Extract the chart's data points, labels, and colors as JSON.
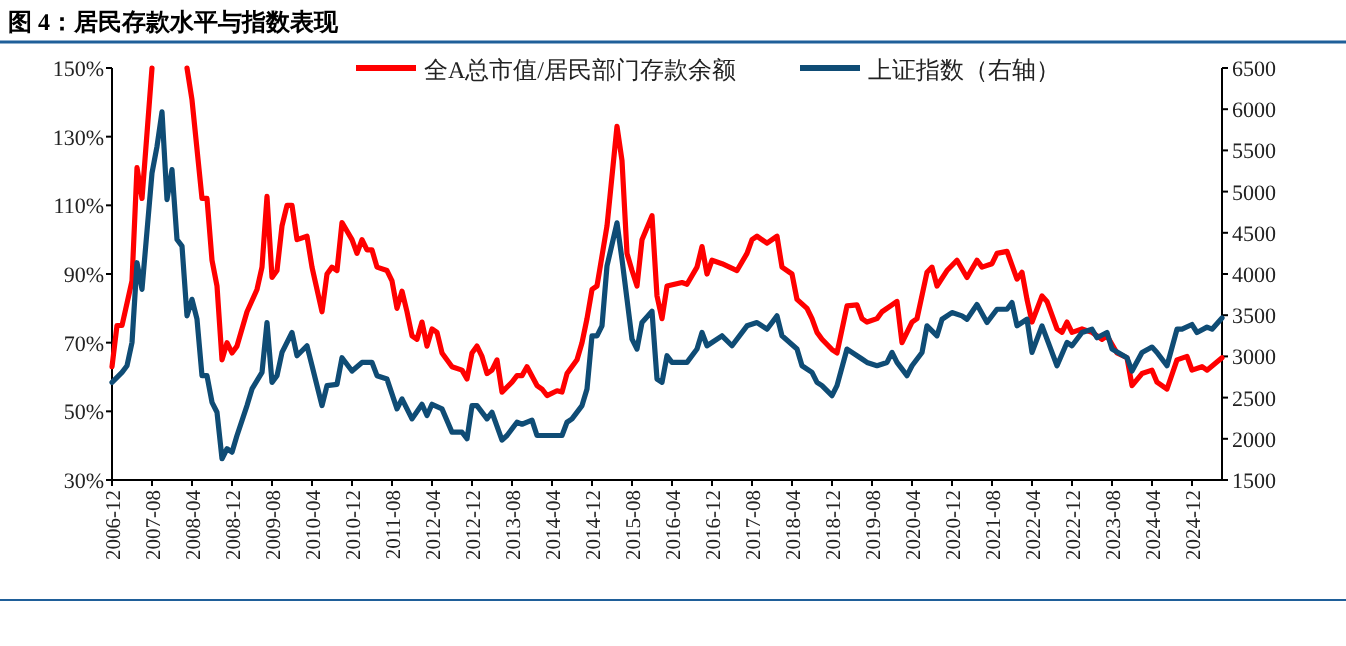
{
  "chart_data": {
    "type": "line",
    "title": "图 4：居民存款水平与指数表现",
    "legend": "top",
    "grid": false,
    "marker": "none",
    "line_style": "solid",
    "xlim": [
      "2006-12",
      "2025-06"
    ],
    "xticks": [
      "2006-12",
      "2007-08",
      "2008-04",
      "2008-12",
      "2009-08",
      "2010-04",
      "2010-12",
      "2011-08",
      "2012-04",
      "2012-12",
      "2013-08",
      "2014-04",
      "2014-12",
      "2015-08",
      "2016-04",
      "2016-12",
      "2017-08",
      "2018-04",
      "2018-12",
      "2019-08",
      "2020-04",
      "2020-12",
      "2021-08",
      "2022-04",
      "2022-12",
      "2023-08",
      "2024-04",
      "2024-12"
    ],
    "ylim": [
      30,
      150
    ],
    "yticks": [
      {
        "value": 30,
        "label": "30%"
      },
      {
        "value": 50,
        "label": "50%"
      },
      {
        "value": 70,
        "label": "70%"
      },
      {
        "value": 90,
        "label": "90%"
      },
      {
        "value": 110,
        "label": "110%"
      },
      {
        "value": 130,
        "label": "130%"
      },
      {
        "value": 150,
        "label": "150%"
      }
    ],
    "y2lim": [
      1500,
      6500
    ],
    "y2ticks": [
      1500,
      2000,
      2500,
      3000,
      3500,
      4000,
      4500,
      5000,
      5500,
      6000,
      6500
    ],
    "series": [
      {
        "name": "全A总市值/居民部门存款余额",
        "color": "#ff0000",
        "axis": "y",
        "x": [
          "2006-12",
          "2007-01",
          "2007-02",
          "2007-04",
          "2007-05",
          "2007-06",
          "2007-08",
          "2007-11",
          "2008-03",
          "2008-04",
          "2008-06",
          "2008-07",
          "2008-08",
          "2008-09",
          "2008-10",
          "2008-11",
          "2008-12",
          "2009-01",
          "2009-03",
          "2009-05",
          "2009-06",
          "2009-07",
          "2009-08",
          "2009-09",
          "2009-10",
          "2009-11",
          "2009-12",
          "2010-01",
          "2010-03",
          "2010-04",
          "2010-06",
          "2010-07",
          "2010-08",
          "2010-09",
          "2010-10",
          "2010-12",
          "2011-01",
          "2011-02",
          "2011-03",
          "2011-04",
          "2011-05",
          "2011-07",
          "2011-08",
          "2011-09",
          "2011-10",
          "2011-11",
          "2011-12",
          "2012-01",
          "2012-02",
          "2012-03",
          "2012-04",
          "2012-05",
          "2012-06",
          "2012-08",
          "2012-10",
          "2012-11",
          "2012-12",
          "2013-01",
          "2013-02",
          "2013-03",
          "2013-04",
          "2013-05",
          "2013-06",
          "2013-08",
          "2013-09",
          "2013-10",
          "2013-11",
          "2014-01",
          "2014-02",
          "2014-03",
          "2014-05",
          "2014-06",
          "2014-07",
          "2014-09",
          "2014-10",
          "2014-11",
          "2014-12",
          "2015-01",
          "2015-03",
          "2015-05",
          "2015-06",
          "2015-07",
          "2015-08",
          "2015-09",
          "2015-10",
          "2015-12",
          "2016-01",
          "2016-02",
          "2016-03",
          "2016-06",
          "2016-07",
          "2016-09",
          "2016-10",
          "2016-11",
          "2016-12",
          "2017-02",
          "2017-05",
          "2017-07",
          "2017-08",
          "2017-09",
          "2017-11",
          "2018-01",
          "2018-02",
          "2018-04",
          "2018-05",
          "2018-07",
          "2018-08",
          "2018-09",
          "2018-10",
          "2018-12",
          "2019-01",
          "2019-03",
          "2019-05",
          "2019-06",
          "2019-07",
          "2019-09",
          "2019-10",
          "2019-12",
          "2020-01",
          "2020-02",
          "2020-04",
          "2020-05",
          "2020-07",
          "2020-08",
          "2020-09",
          "2020-11",
          "2021-01",
          "2021-03",
          "2021-05",
          "2021-06",
          "2021-08",
          "2021-09",
          "2021-11",
          "2022-01",
          "2022-02",
          "2022-03",
          "2022-04",
          "2022-06",
          "2022-07",
          "2022-09",
          "2022-10",
          "2022-11",
          "2022-12",
          "2023-02",
          "2023-04",
          "2023-06",
          "2023-07",
          "2023-09",
          "2023-11",
          "2023-12",
          "2024-02",
          "2024-04",
          "2024-05",
          "2024-07",
          "2024-09",
          "2024-11",
          "2024-12",
          "2025-02",
          "2025-03",
          "2025-06"
        ],
        "values": [
          63,
          75,
          75,
          88,
          121,
          112,
          150,
          null,
          150,
          140.7,
          112,
          112,
          94,
          86.5,
          65,
          70,
          67,
          69,
          79,
          85.5,
          92,
          112.6,
          89,
          91,
          104,
          110,
          110,
          100,
          101,
          92,
          79,
          90,
          92,
          91,
          105,
          100,
          96,
          100,
          97,
          97,
          92,
          91,
          88,
          80,
          85,
          79,
          72,
          71,
          76,
          69,
          74,
          73,
          67,
          63,
          62,
          59.4,
          67,
          69,
          66,
          61,
          62,
          65,
          55.6,
          58.5,
          60.4,
          60.4,
          63,
          57.5,
          56.5,
          54.6,
          56,
          55.6,
          61,
          65,
          70,
          77,
          85.5,
          86.5,
          104,
          133,
          123,
          96,
          91,
          86.5,
          100,
          107,
          83.6,
          77,
          86.5,
          87.5,
          87,
          92,
          98,
          90,
          94,
          93,
          91,
          96,
          100,
          101,
          99,
          101,
          92,
          90,
          82.6,
          80,
          77,
          73,
          71,
          68,
          67,
          80.7,
          81,
          77,
          76,
          77,
          79,
          81,
          82,
          70,
          76,
          77,
          90.5,
          92,
          86.5,
          91,
          94,
          89,
          94,
          92,
          93,
          96,
          96.6,
          88.5,
          90.5,
          82.6,
          76,
          83.6,
          82,
          74,
          73,
          76,
          73,
          74,
          73,
          71,
          72,
          67,
          65.6,
          57.5,
          61,
          62,
          58.5,
          56.5,
          65,
          66,
          62,
          63,
          62,
          65.6
        ]
      },
      {
        "name": "上证指数（右轴）",
        "color": "#0f4c75",
        "axis": "y2",
        "x": [
          "2006-12",
          "2007-02",
          "2007-03",
          "2007-04",
          "2007-05",
          "2007-06",
          "2007-08",
          "2007-09",
          "2007-10",
          "2007-11",
          "2007-12",
          "2008-01",
          "2008-02",
          "2008-03",
          "2008-04",
          "2008-05",
          "2008-06",
          "2008-07",
          "2008-08",
          "2008-09",
          "2008-10",
          "2008-11",
          "2008-12",
          "2009-01",
          "2009-03",
          "2009-04",
          "2009-06",
          "2009-07",
          "2009-08",
          "2009-09",
          "2009-10",
          "2009-12",
          "2010-01",
          "2010-03",
          "2010-04",
          "2010-06",
          "2010-07",
          "2010-09",
          "2010-10",
          "2010-12",
          "2011-02",
          "2011-04",
          "2011-05",
          "2011-07",
          "2011-09",
          "2011-10",
          "2011-12",
          "2012-02",
          "2012-03",
          "2012-04",
          "2012-06",
          "2012-08",
          "2012-10",
          "2012-11",
          "2012-12",
          "2013-01",
          "2013-03",
          "2013-04",
          "2013-06",
          "2013-07",
          "2013-09",
          "2013-10",
          "2013-12",
          "2014-01",
          "2014-03",
          "2014-06",
          "2014-07",
          "2014-08",
          "2014-10",
          "2014-11",
          "2014-12",
          "2015-01",
          "2015-02",
          "2015-03",
          "2015-05",
          "2015-06",
          "2015-07",
          "2015-08",
          "2015-09",
          "2015-10",
          "2015-12",
          "2016-01",
          "2016-02",
          "2016-03",
          "2016-04",
          "2016-06",
          "2016-07",
          "2016-09",
          "2016-10",
          "2016-11",
          "2017-02",
          "2017-04",
          "2017-07",
          "2017-09",
          "2017-11",
          "2018-01",
          "2018-02",
          "2018-05",
          "2018-06",
          "2018-08",
          "2018-09",
          "2018-10",
          "2018-12",
          "2019-01",
          "2019-03",
          "2019-04",
          "2019-06",
          "2019-07",
          "2019-09",
          "2019-11",
          "2019-12",
          "2020-01",
          "2020-03",
          "2020-04",
          "2020-06",
          "2020-07",
          "2020-09",
          "2020-10",
          "2020-12",
          "2021-02",
          "2021-03",
          "2021-05",
          "2021-07",
          "2021-09",
          "2021-11",
          "2021-12",
          "2022-01",
          "2022-03",
          "2022-04",
          "2022-06",
          "2022-07",
          "2022-09",
          "2022-11",
          "2022-12",
          "2023-02",
          "2023-04",
          "2023-05",
          "2023-07",
          "2023-08",
          "2023-11",
          "2023-12",
          "2024-02",
          "2024-04",
          "2024-05",
          "2024-07",
          "2024-09",
          "2024-10",
          "2024-12",
          "2025-01",
          "2025-03",
          "2025-04",
          "2025-06"
        ],
        "values": [
          2685,
          2806,
          2887,
          3169,
          4137,
          3814,
          5226,
          5548,
          5968,
          4903,
          5266,
          4419,
          4339,
          3492,
          3693,
          3451,
          2766,
          2766,
          2443,
          2322,
          1758,
          1879,
          1838,
          2040,
          2403,
          2605,
          2806,
          3411,
          2685,
          2766,
          3048,
          3290,
          3008,
          3129,
          2887,
          2403,
          2645,
          2661,
          2984,
          2822,
          2927,
          2927,
          2766,
          2725,
          2363,
          2484,
          2242,
          2419,
          2282,
          2419,
          2363,
          2080,
          2080,
          2000,
          2403,
          2403,
          2242,
          2322,
          1984,
          2040,
          2201,
          2177,
          2226,
          2040,
          2040,
          2040,
          2201,
          2242,
          2403,
          2605,
          3250,
          3250,
          3371,
          4097,
          4621,
          4177,
          3693,
          3209,
          3089,
          3411,
          3548,
          2726,
          2685,
          3008,
          2927,
          2927,
          2927,
          3089,
          3290,
          3129,
          3250,
          3129,
          3371,
          3411,
          3330,
          3492,
          3250,
          3089,
          2887,
          2806,
          2685,
          2645,
          2524,
          2645,
          3089,
          3048,
          2968,
          2927,
          2887,
          2927,
          3048,
          2927,
          2766,
          2887,
          3048,
          3371,
          3250,
          3451,
          3532,
          3492,
          3451,
          3629,
          3411,
          3572,
          3572,
          3653,
          3371,
          3451,
          3048,
          3371,
          3209,
          2887,
          3169,
          3129,
          3290,
          3330,
          3226,
          3290,
          3089,
          2984,
          2822,
          3048,
          3113,
          3048,
          2887,
          3330,
          3330,
          3387,
          3290,
          3355,
          3330,
          3467
        ]
      }
    ]
  }
}
